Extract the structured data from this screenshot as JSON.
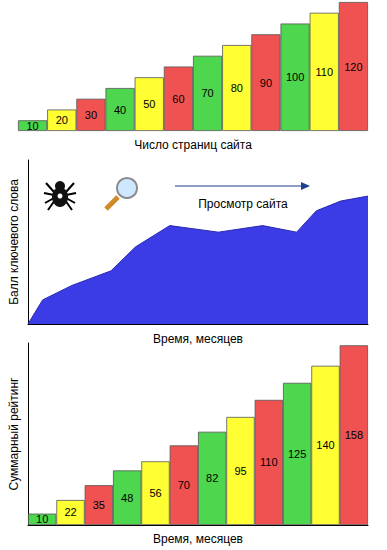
{
  "chart_data": [
    {
      "type": "bar",
      "xlabel": "Число страниц сайта",
      "categories": [
        null,
        null,
        null,
        null,
        null,
        null,
        null,
        null,
        null,
        null,
        null,
        null
      ],
      "values": [
        10,
        20,
        30,
        40,
        50,
        60,
        70,
        80,
        90,
        100,
        110,
        120
      ],
      "colors": [
        "#4ed64e",
        "#ffff33",
        "#f05252",
        "#4ed64e",
        "#ffff33",
        "#f05252",
        "#4ed64e",
        "#ffff33",
        "#f05252",
        "#4ed64e",
        "#ffff33",
        "#f05252"
      ],
      "ylim": [
        0,
        120
      ],
      "data_labels": true,
      "tick_labels": false,
      "grid": false
    },
    {
      "type": "area",
      "xlabel": "Время, месяцев",
      "ylabel": "Балл ключевого слова",
      "annotations": [
        "Просмотр сайта"
      ],
      "x": [
        0,
        4.3,
        12.9,
        24.4,
        31.6,
        41.7,
        56,
        69,
        79,
        84.8,
        92,
        100
      ],
      "values": [
        0,
        14.7,
        23.5,
        32.4,
        47,
        60,
        56,
        60,
        56,
        69,
        75,
        78
      ],
      "color": "#3c3ce6",
      "xlim": [
        0,
        100
      ],
      "ylim": [
        0,
        100
      ],
      "tick_labels": false,
      "grid": false
    },
    {
      "type": "bar",
      "xlabel": "Время, месяцев",
      "ylabel": "Суммарный рейтинг",
      "categories": [
        null,
        null,
        null,
        null,
        null,
        null,
        null,
        null,
        null,
        null,
        null,
        null
      ],
      "values": [
        10,
        22,
        35,
        48,
        56,
        70,
        82,
        95,
        110,
        125,
        140,
        158
      ],
      "colors": [
        "#4ed64e",
        "#ffff33",
        "#f05252",
        "#4ed64e",
        "#ffff33",
        "#f05252",
        "#4ed64e",
        "#ffff33",
        "#f05252",
        "#4ed64e",
        "#ffff33",
        "#f05252"
      ],
      "ylim": [
        0,
        160
      ],
      "data_labels": true,
      "tick_labels": false,
      "grid": false
    }
  ]
}
